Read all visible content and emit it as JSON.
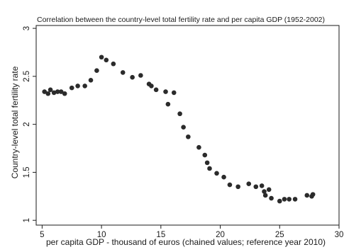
{
  "chart_data": {
    "type": "scatter",
    "title": "Correlation between the country-level total fertility rate and per capita GDP (1952-2002)",
    "xlabel": "per capita GDP - thousand of euros (chained values; reference year 2010)",
    "ylabel": "Country-level total fertility rate",
    "xlim": [
      4.5,
      30
    ],
    "ylim": [
      0.95,
      3.03
    ],
    "x_ticks": [
      5,
      10,
      15,
      20,
      25,
      30
    ],
    "x_tick_labels": [
      "5",
      "10",
      "15",
      "20",
      "25",
      "30"
    ],
    "y_ticks": [
      1,
      1.5,
      2,
      2.5,
      3
    ],
    "y_tick_labels": [
      "1",
      "1.5",
      "2",
      "2.5",
      "3"
    ],
    "grid": false,
    "legend": false,
    "series": [
      {
        "points": [
          [
            5.2,
            2.34
          ],
          [
            5.5,
            2.32
          ],
          [
            5.7,
            2.36
          ],
          [
            6.0,
            2.33
          ],
          [
            6.3,
            2.34
          ],
          [
            6.6,
            2.34
          ],
          [
            6.9,
            2.32
          ],
          [
            7.5,
            2.38
          ],
          [
            8.0,
            2.4
          ],
          [
            8.6,
            2.4
          ],
          [
            9.1,
            2.46
          ],
          [
            9.6,
            2.56
          ],
          [
            10.0,
            2.7
          ],
          [
            10.4,
            2.67
          ],
          [
            11.0,
            2.63
          ],
          [
            11.8,
            2.54
          ],
          [
            12.6,
            2.49
          ],
          [
            13.3,
            2.51
          ],
          [
            14.0,
            2.42
          ],
          [
            14.2,
            2.4
          ],
          [
            14.6,
            2.36
          ],
          [
            15.4,
            2.34
          ],
          [
            15.6,
            2.21
          ],
          [
            16.1,
            2.33
          ],
          [
            16.6,
            2.11
          ],
          [
            16.9,
            1.97
          ],
          [
            17.3,
            1.87
          ],
          [
            18.2,
            1.76
          ],
          [
            18.7,
            1.68
          ],
          [
            18.9,
            1.6
          ],
          [
            19.1,
            1.54
          ],
          [
            19.7,
            1.49
          ],
          [
            20.3,
            1.45
          ],
          [
            20.8,
            1.37
          ],
          [
            21.5,
            1.35
          ],
          [
            22.4,
            1.38
          ],
          [
            23.0,
            1.35
          ],
          [
            23.5,
            1.36
          ],
          [
            23.7,
            1.3
          ],
          [
            24.1,
            1.32
          ],
          [
            23.8,
            1.26
          ],
          [
            24.3,
            1.23
          ],
          [
            25.0,
            1.2
          ],
          [
            25.4,
            1.22
          ],
          [
            25.8,
            1.22
          ],
          [
            26.3,
            1.22
          ],
          [
            27.3,
            1.26
          ],
          [
            27.7,
            1.25
          ],
          [
            27.8,
            1.27
          ]
        ]
      }
    ]
  }
}
